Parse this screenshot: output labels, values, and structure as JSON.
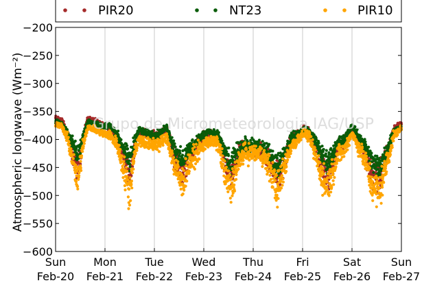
{
  "chart_data": {
    "type": "scatter",
    "ylabel": "Atmospheric longwave (Wm⁻²)",
    "ylim": [
      -600,
      -200
    ],
    "yticks": [
      -200,
      -250,
      -300,
      -350,
      -400,
      -450,
      -500,
      -550,
      -600
    ],
    "xlim": [
      0,
      7
    ],
    "xticks": [
      {
        "x": 0,
        "day": "Sun",
        "date": "Feb-20"
      },
      {
        "x": 1,
        "day": "Mon",
        "date": "Feb-21"
      },
      {
        "x": 2,
        "day": "Tue",
        "date": "Feb-22"
      },
      {
        "x": 3,
        "day": "Wed",
        "date": "Feb-23"
      },
      {
        "x": 4,
        "day": "Thu",
        "date": "Feb-24"
      },
      {
        "x": 5,
        "day": "Fri",
        "date": "Feb-25"
      },
      {
        "x": 6,
        "day": "Sat",
        "date": "Feb-26"
      },
      {
        "x": 7,
        "day": "Sun",
        "date": "Feb-27"
      }
    ],
    "grid": "vertical",
    "legend_position": "top",
    "watermark": "Grupo de Micrometeorologia IAG/USP",
    "series": [
      {
        "name": "PIR20",
        "color": "#a52a2a",
        "profile": [
          [
            0.0,
            -362
          ],
          [
            0.12,
            -365
          ],
          [
            0.25,
            -390
          ],
          [
            0.35,
            -425
          ],
          [
            0.45,
            -455
          ],
          [
            0.55,
            -400
          ],
          [
            0.65,
            -363
          ],
          [
            0.8,
            -368
          ],
          [
            0.95,
            -375
          ],
          [
            1.1,
            -378
          ],
          [
            1.25,
            -398
          ],
          [
            1.4,
            -440
          ],
          [
            1.5,
            -468
          ],
          [
            1.6,
            -410
          ],
          [
            1.7,
            -385
          ],
          [
            1.8,
            -390
          ],
          [
            1.9,
            -395
          ],
          [
            2.1,
            -392
          ],
          [
            2.25,
            -380
          ],
          [
            2.4,
            -430
          ],
          [
            2.55,
            -460
          ],
          [
            2.7,
            -430
          ],
          [
            2.9,
            -405
          ],
          [
            3.1,
            -388
          ],
          [
            3.3,
            -398
          ],
          [
            3.45,
            -450
          ],
          [
            3.55,
            -470
          ],
          [
            3.65,
            -440
          ],
          [
            3.8,
            -415
          ],
          [
            4.0,
            -418
          ],
          [
            4.2,
            -420
          ],
          [
            4.35,
            -440
          ],
          [
            4.5,
            -470
          ],
          [
            4.6,
            -445
          ],
          [
            4.75,
            -405
          ],
          [
            4.9,
            -392
          ],
          [
            5.05,
            -378
          ],
          [
            5.15,
            -390
          ],
          [
            5.3,
            -425
          ],
          [
            5.45,
            -465
          ],
          [
            5.55,
            -460
          ],
          [
            5.7,
            -420
          ],
          [
            5.85,
            -405
          ],
          [
            6.0,
            -378
          ],
          [
            6.1,
            -395
          ],
          [
            6.25,
            -420
          ],
          [
            6.4,
            -462
          ],
          [
            6.55,
            -470
          ],
          [
            6.7,
            -430
          ],
          [
            6.85,
            -380
          ],
          [
            7.0,
            -372
          ]
        ]
      },
      {
        "name": "NT23",
        "color": "#0a5c0a",
        "profile": [
          [
            0.0,
            -368
          ],
          [
            0.12,
            -372
          ],
          [
            0.25,
            -390
          ],
          [
            0.35,
            -408
          ],
          [
            0.45,
            -430
          ],
          [
            0.55,
            -395
          ],
          [
            0.65,
            -368
          ],
          [
            0.8,
            -372
          ],
          [
            0.95,
            -378
          ],
          [
            1.1,
            -375
          ],
          [
            1.25,
            -392
          ],
          [
            1.4,
            -420
          ],
          [
            1.5,
            -440
          ],
          [
            1.6,
            -400
          ],
          [
            1.7,
            -382
          ],
          [
            1.8,
            -388
          ],
          [
            1.9,
            -392
          ],
          [
            2.1,
            -390
          ],
          [
            2.25,
            -378
          ],
          [
            2.4,
            -415
          ],
          [
            2.55,
            -440
          ],
          [
            2.7,
            -418
          ],
          [
            2.9,
            -398
          ],
          [
            3.1,
            -385
          ],
          [
            3.3,
            -395
          ],
          [
            3.45,
            -430
          ],
          [
            3.55,
            -450
          ],
          [
            3.65,
            -425
          ],
          [
            3.8,
            -410
          ],
          [
            4.0,
            -412
          ],
          [
            4.2,
            -415
          ],
          [
            4.35,
            -430
          ],
          [
            4.5,
            -448
          ],
          [
            4.6,
            -430
          ],
          [
            4.75,
            -400
          ],
          [
            4.9,
            -390
          ],
          [
            5.05,
            -380
          ],
          [
            5.15,
            -388
          ],
          [
            5.3,
            -410
          ],
          [
            5.45,
            -440
          ],
          [
            5.55,
            -435
          ],
          [
            5.7,
            -410
          ],
          [
            5.85,
            -400
          ],
          [
            6.0,
            -375
          ],
          [
            6.1,
            -390
          ],
          [
            6.25,
            -410
          ],
          [
            6.4,
            -440
          ],
          [
            6.55,
            -450
          ],
          [
            6.7,
            -420
          ],
          [
            6.85,
            -385
          ],
          [
            7.0,
            -378
          ]
        ]
      },
      {
        "name": "PIR10",
        "color": "#ffa500",
        "profile": [
          [
            0.0,
            -372
          ],
          [
            0.12,
            -376
          ],
          [
            0.25,
            -400
          ],
          [
            0.35,
            -440
          ],
          [
            0.45,
            -480
          ],
          [
            0.55,
            -410
          ],
          [
            0.65,
            -378
          ],
          [
            0.8,
            -382
          ],
          [
            0.95,
            -390
          ],
          [
            1.1,
            -392
          ],
          [
            1.25,
            -410
          ],
          [
            1.4,
            -460
          ],
          [
            1.5,
            -495
          ],
          [
            1.6,
            -420
          ],
          [
            1.7,
            -400
          ],
          [
            1.8,
            -405
          ],
          [
            1.9,
            -410
          ],
          [
            2.1,
            -408
          ],
          [
            2.25,
            -395
          ],
          [
            2.4,
            -445
          ],
          [
            2.55,
            -480
          ],
          [
            2.7,
            -445
          ],
          [
            2.9,
            -420
          ],
          [
            3.1,
            -402
          ],
          [
            3.3,
            -410
          ],
          [
            3.45,
            -470
          ],
          [
            3.55,
            -490
          ],
          [
            3.65,
            -455
          ],
          [
            3.8,
            -425
          ],
          [
            4.0,
            -425
          ],
          [
            4.2,
            -428
          ],
          [
            4.35,
            -455
          ],
          [
            4.5,
            -490
          ],
          [
            4.6,
            -460
          ],
          [
            4.75,
            -415
          ],
          [
            4.9,
            -400
          ],
          [
            5.05,
            -388
          ],
          [
            5.15,
            -400
          ],
          [
            5.3,
            -440
          ],
          [
            5.45,
            -480
          ],
          [
            5.55,
            -475
          ],
          [
            5.7,
            -430
          ],
          [
            5.85,
            -418
          ],
          [
            6.0,
            -388
          ],
          [
            6.1,
            -408
          ],
          [
            6.25,
            -435
          ],
          [
            6.4,
            -480
          ],
          [
            6.55,
            -495
          ],
          [
            6.7,
            -445
          ],
          [
            6.85,
            -392
          ],
          [
            7.0,
            -380
          ]
        ]
      }
    ]
  }
}
